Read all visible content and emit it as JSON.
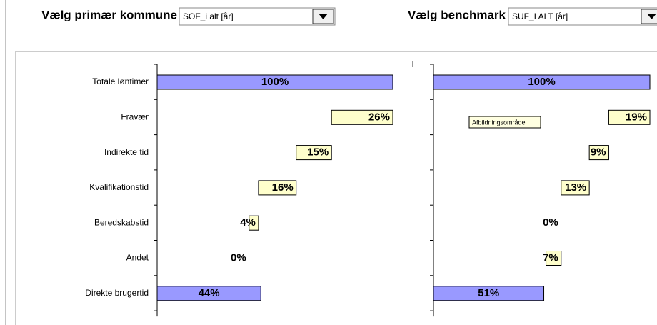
{
  "controls": {
    "primary_label": "Vælg primær kommune",
    "primary_value": "SOF_i alt [år]",
    "benchmark_label": "Vælg benchmark",
    "benchmark_value": "SUF_I ALT [år]"
  },
  "chart_data": [
    {
      "type": "waterfall",
      "categories": [
        "Totale løntimer",
        "Fravær",
        "Indirekte tid",
        "Kvalifikationstid",
        "Beredskabstid",
        "Andet",
        "Direkte brugertid"
      ],
      "values": [
        100,
        26,
        15,
        16,
        4,
        0,
        44
      ],
      "value_labels": [
        "100%",
        "26%",
        "15%",
        "16%",
        "4%",
        "0%",
        "44%"
      ],
      "total_color": "#9999ff",
      "step_color": "#ffffcc",
      "xlim": [
        0,
        100
      ]
    },
    {
      "type": "waterfall",
      "values": [
        100,
        19,
        9,
        13,
        0,
        7,
        51
      ],
      "value_labels": [
        "100%",
        "19%",
        "9%",
        "13%",
        "0%",
        "7%",
        "51%"
      ],
      "total_color": "#9999ff",
      "step_color": "#ffffcc",
      "xlim": [
        0,
        100
      ],
      "annotation": "Afbildningsområde"
    }
  ]
}
